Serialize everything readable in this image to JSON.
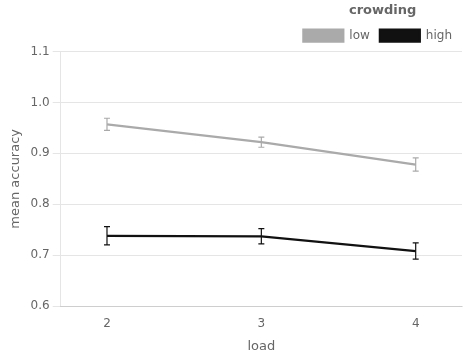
{
  "chart_data": {
    "type": "line",
    "x": [
      2,
      3,
      4
    ],
    "series": [
      {
        "name": "low",
        "color": "#aaaaaa",
        "marker": "none",
        "line_style": "solid",
        "values": [
          0.957,
          0.922,
          0.878
        ],
        "yerr": [
          0.012,
          0.01,
          0.013
        ]
      },
      {
        "name": "high",
        "color": "#111111",
        "marker": "none",
        "line_style": "solid",
        "values": [
          0.738,
          0.737,
          0.708
        ],
        "yerr": [
          0.018,
          0.015,
          0.016
        ]
      }
    ],
    "xlabel": "load",
    "ylabel": "mean accuracy",
    "xlim": [
      1.7,
      4.3
    ],
    "xticks": [
      2,
      3,
      4
    ],
    "ylim": [
      0.6,
      1.1
    ],
    "yticks": [
      0.6,
      0.7,
      0.8,
      0.9,
      {
        "value": 1,
        "label": "1.0"
      },
      1.1
    ],
    "grid": "y",
    "legend": "upper right",
    "legend_title": "crowding"
  }
}
